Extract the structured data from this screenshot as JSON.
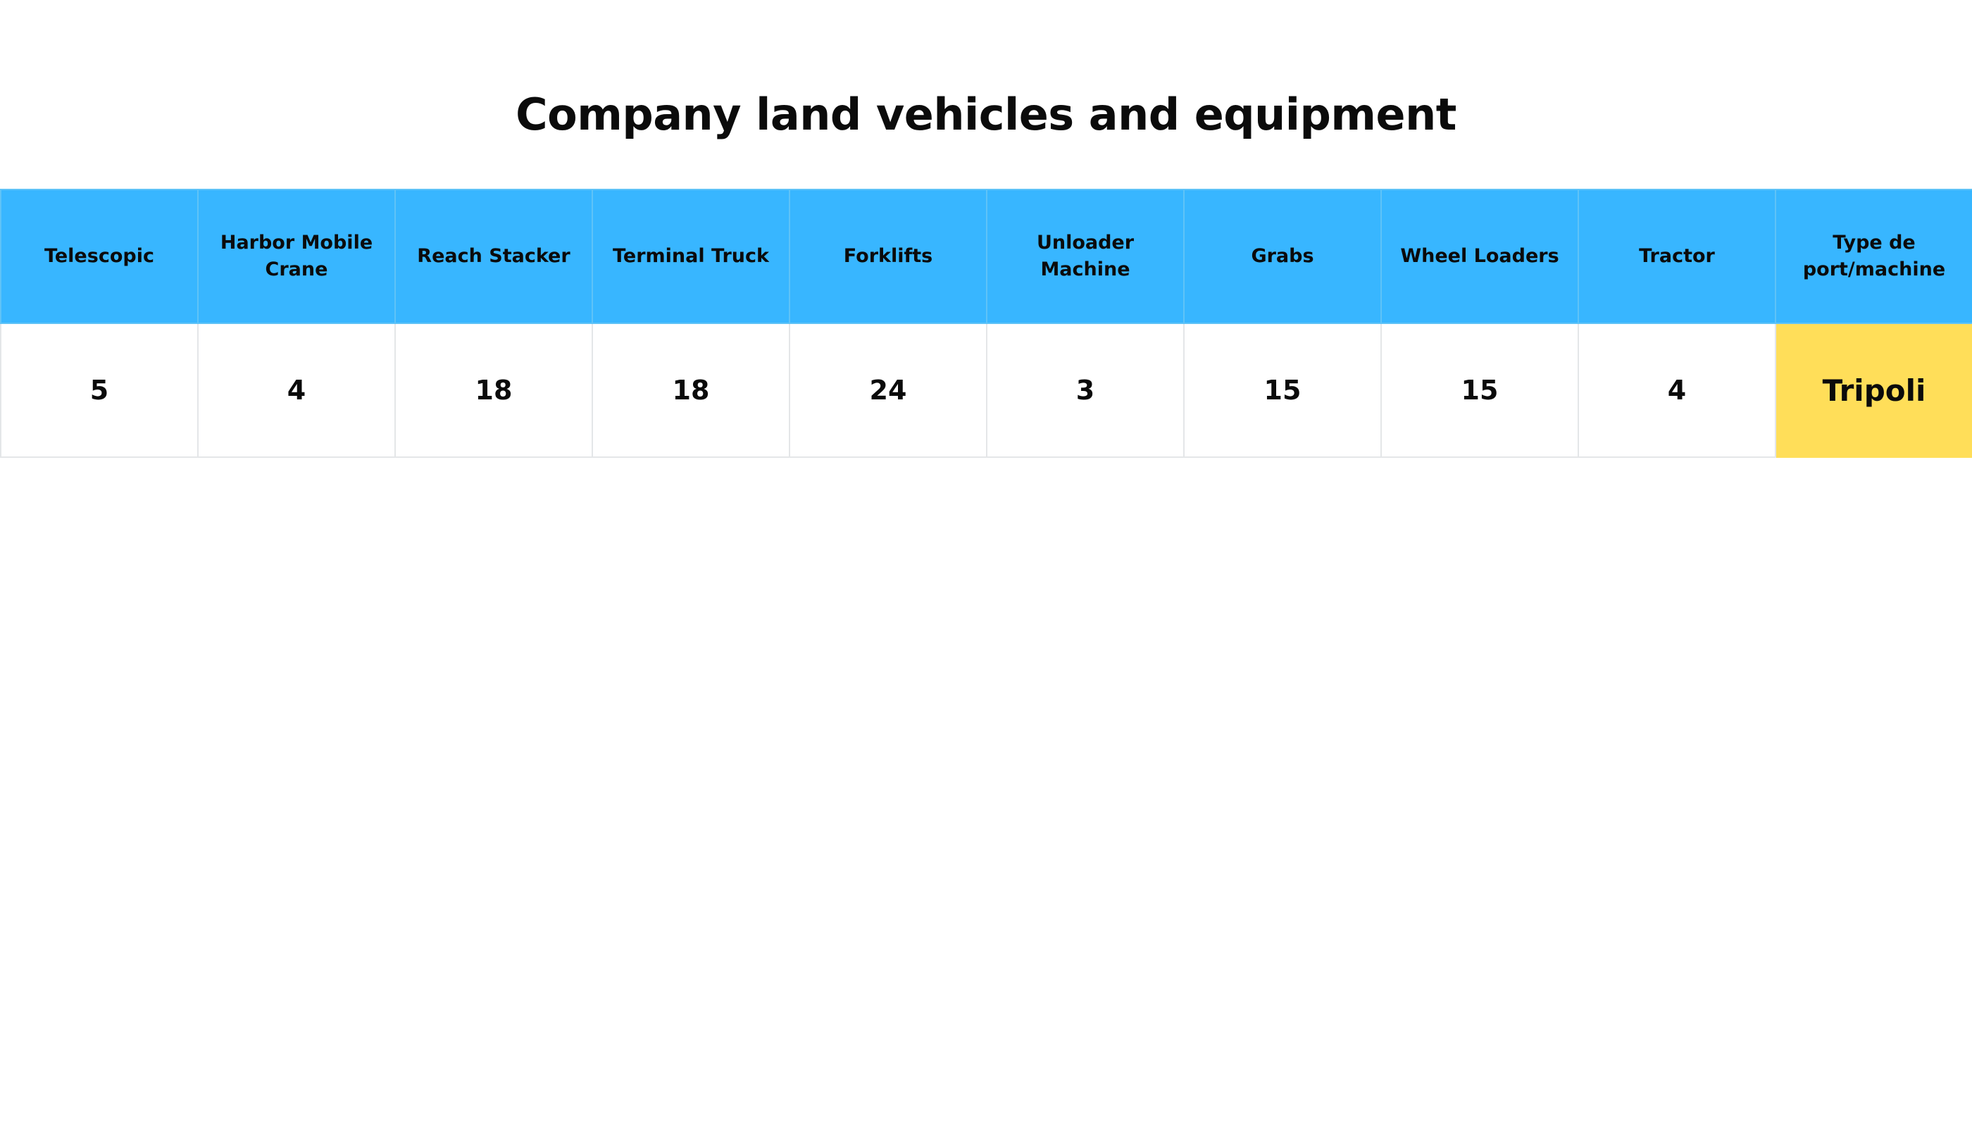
{
  "title": "Company land vehicles and equipment",
  "table": {
    "headers": [
      "Telescopic",
      "Harbor Mobile Crane",
      "Reach Stacker",
      "Terminal Truck",
      "Forklifts",
      "Unloader Machine",
      "Grabs",
      "Wheel Loaders",
      "Tractor",
      "Type de port/machine"
    ],
    "rows": [
      [
        "5",
        "4",
        "18",
        "18",
        "24",
        "3",
        "15",
        "15",
        "4",
        "Tripoli"
      ]
    ]
  },
  "colors": {
    "header_background": "#38b6ff",
    "location_background": "#ffde59",
    "cell_border": "#e4e6e8",
    "text": "#0b0b0b"
  }
}
